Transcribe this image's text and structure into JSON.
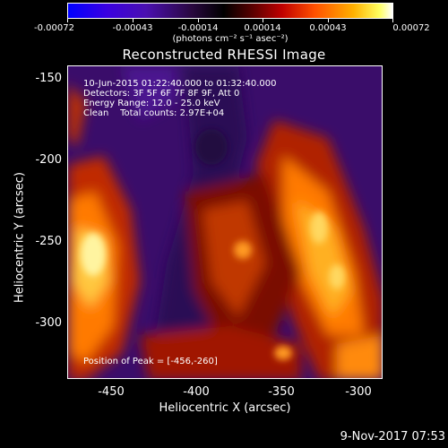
{
  "colorbar": {
    "tick_labels": [
      "-0.00072",
      "-0.00043",
      "-0.00014",
      "0.00014",
      "0.00043",
      "0.00072"
    ],
    "units": "(photons cm⁻² s⁻¹ asec⁻²)"
  },
  "title": "Reconstructed RHESSI Image",
  "info": {
    "time_range": "10-Jun-2015 01:22:40.000 to 01:32:40.000",
    "detectors": "Detectors: 3F 5F 6F 7F 8F 9F, Att 0",
    "energy": "Energy Range: 12.0 - 25.0 keV",
    "clean": "Clean    Total counts: 2.97E+04",
    "peak": "Position of Peak = [-456,-260]"
  },
  "axes": {
    "xlabel": "Heliocentric X (arcsec)",
    "ylabel": "Heliocentric Y (arcsec)",
    "xticks": [
      "-450",
      "-400",
      "-350",
      "-300"
    ],
    "yticks": [
      "-150",
      "-200",
      "-250",
      "-300"
    ]
  },
  "timestamp": "9-Nov-2017 07:53"
}
